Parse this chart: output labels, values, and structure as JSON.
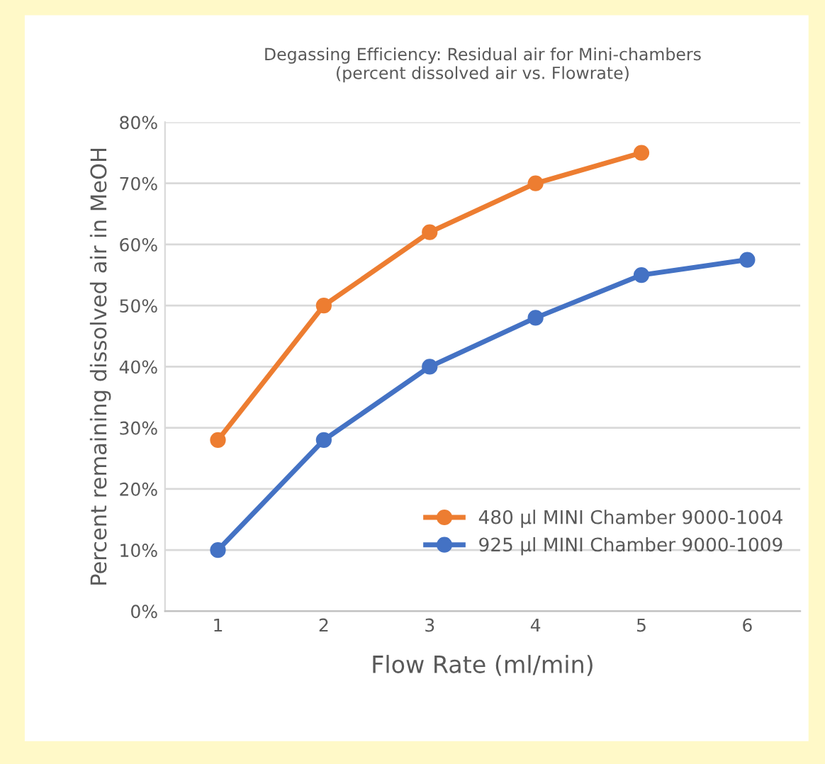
{
  "chart_data": {
    "type": "line",
    "title": "Degassing Efficiency: Residual air for Mini-chambers\n(percent dissolved air vs. Flowrate)",
    "xlabel": "Flow Rate (ml/min)",
    "ylabel": "Percent remaining dissolved air in MeOH",
    "categories": [
      "1",
      "2",
      "3",
      "4",
      "5",
      "6"
    ],
    "series": [
      {
        "name": "480 µl MINI Chamber 9000-1004",
        "color": "#ed7d31",
        "values": [
          28,
          50,
          62,
          70,
          75,
          null
        ]
      },
      {
        "name": "925 µl MINI Chamber 9000-1009",
        "color": "#4472c4",
        "values": [
          10,
          28,
          40,
          48,
          55,
          57.5
        ]
      }
    ],
    "ylim": [
      0,
      80
    ],
    "yticks": [
      {
        "value": 0,
        "label": "0%"
      },
      {
        "value": 10,
        "label": "10%"
      },
      {
        "value": 20,
        "label": "20%"
      },
      {
        "value": 30,
        "label": "30%"
      },
      {
        "value": 40,
        "label": "40%"
      },
      {
        "value": 50,
        "label": "50%"
      },
      {
        "value": 60,
        "label": "60%"
      },
      {
        "value": 70,
        "label": "70%"
      },
      {
        "value": 80,
        "label": "80%"
      }
    ],
    "grid": "y",
    "legend": "bottom right",
    "marker": "circle",
    "line_style": "solid"
  }
}
